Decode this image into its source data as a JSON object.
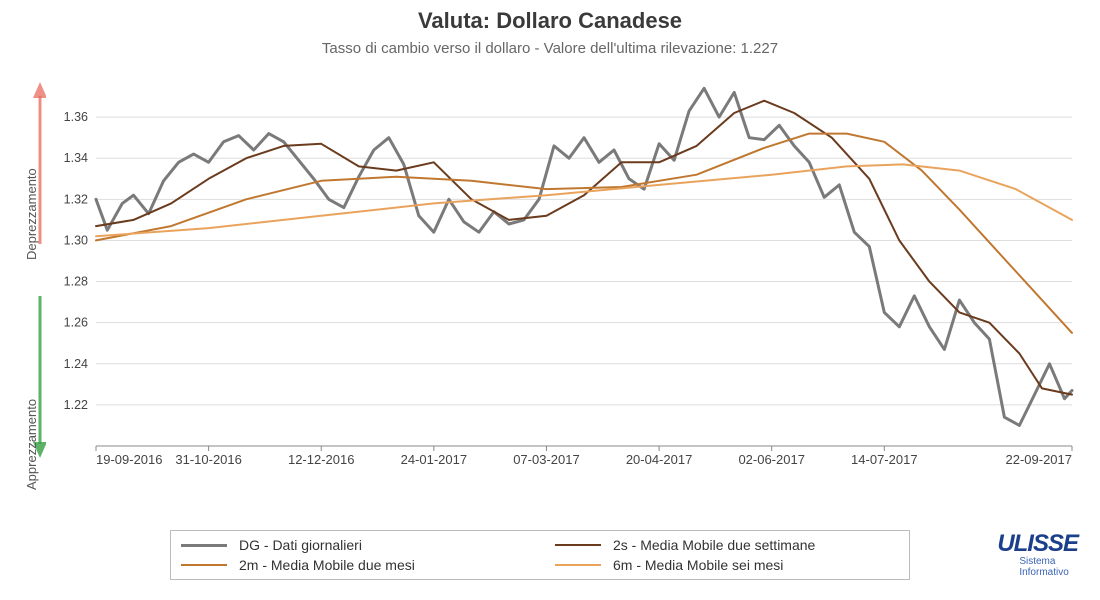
{
  "chart": {
    "type": "line",
    "title": "Valuta: Dollaro Canadese",
    "subtitle": "Tasso di cambio verso il dollaro - Valore dell'ultima rilevazione: 1.227",
    "title_fontsize": 22,
    "subtitle_fontsize": 15,
    "background_color": "#ffffff",
    "grid_color": "#dddddd",
    "axis_color": "#888888",
    "tick_fontsize": 12.5,
    "xtick_fontsize": 13,
    "ylim": [
      1.2,
      1.38
    ],
    "yticks": [
      1.22,
      1.24,
      1.26,
      1.28,
      1.3,
      1.32,
      1.34,
      1.36
    ],
    "xlim": [
      0,
      260
    ],
    "xticks": [
      {
        "pos": 0,
        "label": "19-09-2016"
      },
      {
        "pos": 30,
        "label": "31-10-2016"
      },
      {
        "pos": 60,
        "label": "12-12-2016"
      },
      {
        "pos": 90,
        "label": "24-01-2017"
      },
      {
        "pos": 120,
        "label": "07-03-2017"
      },
      {
        "pos": 150,
        "label": "20-04-2017"
      },
      {
        "pos": 180,
        "label": "02-06-2017"
      },
      {
        "pos": 210,
        "label": "14-07-2017"
      },
      {
        "pos": 260,
        "label": "22-09-2017"
      }
    ],
    "annotations": {
      "up_label": "Deprezzamento",
      "down_label": "Apprezzamento",
      "up_color": "#e86b5c",
      "down_color": "#3fa64b"
    },
    "series": [
      {
        "key": "DG",
        "label": "DG - Dati giornalieri",
        "color": "#7a7a7a",
        "line_width": 3,
        "points": [
          [
            0,
            1.32
          ],
          [
            3,
            1.305
          ],
          [
            7,
            1.318
          ],
          [
            10,
            1.322
          ],
          [
            14,
            1.313
          ],
          [
            18,
            1.329
          ],
          [
            22,
            1.338
          ],
          [
            26,
            1.342
          ],
          [
            30,
            1.338
          ],
          [
            34,
            1.348
          ],
          [
            38,
            1.351
          ],
          [
            42,
            1.344
          ],
          [
            46,
            1.352
          ],
          [
            50,
            1.348
          ],
          [
            54,
            1.339
          ],
          [
            58,
            1.33
          ],
          [
            62,
            1.32
          ],
          [
            66,
            1.316
          ],
          [
            70,
            1.331
          ],
          [
            74,
            1.344
          ],
          [
            78,
            1.35
          ],
          [
            82,
            1.337
          ],
          [
            86,
            1.312
          ],
          [
            90,
            1.304
          ],
          [
            94,
            1.32
          ],
          [
            98,
            1.309
          ],
          [
            102,
            1.304
          ],
          [
            106,
            1.314
          ],
          [
            110,
            1.308
          ],
          [
            114,
            1.31
          ],
          [
            118,
            1.32
          ],
          [
            122,
            1.346
          ],
          [
            126,
            1.34
          ],
          [
            130,
            1.35
          ],
          [
            134,
            1.338
          ],
          [
            138,
            1.344
          ],
          [
            142,
            1.33
          ],
          [
            146,
            1.325
          ],
          [
            150,
            1.347
          ],
          [
            154,
            1.339
          ],
          [
            158,
            1.363
          ],
          [
            162,
            1.374
          ],
          [
            166,
            1.36
          ],
          [
            170,
            1.372
          ],
          [
            174,
            1.35
          ],
          [
            178,
            1.349
          ],
          [
            182,
            1.356
          ],
          [
            186,
            1.346
          ],
          [
            190,
            1.338
          ],
          [
            194,
            1.321
          ],
          [
            198,
            1.327
          ],
          [
            202,
            1.304
          ],
          [
            206,
            1.297
          ],
          [
            210,
            1.265
          ],
          [
            214,
            1.258
          ],
          [
            218,
            1.273
          ],
          [
            222,
            1.258
          ],
          [
            226,
            1.247
          ],
          [
            230,
            1.271
          ],
          [
            234,
            1.26
          ],
          [
            238,
            1.252
          ],
          [
            242,
            1.214
          ],
          [
            246,
            1.21
          ],
          [
            250,
            1.225
          ],
          [
            254,
            1.24
          ],
          [
            258,
            1.223
          ],
          [
            260,
            1.227
          ]
        ]
      },
      {
        "key": "2s",
        "label": "2s - Media Mobile due settimane",
        "color": "#6b3b1e",
        "line_width": 2,
        "points": [
          [
            0,
            1.307
          ],
          [
            10,
            1.31
          ],
          [
            20,
            1.318
          ],
          [
            30,
            1.33
          ],
          [
            40,
            1.34
          ],
          [
            50,
            1.346
          ],
          [
            60,
            1.347
          ],
          [
            70,
            1.336
          ],
          [
            80,
            1.334
          ],
          [
            90,
            1.338
          ],
          [
            100,
            1.32
          ],
          [
            110,
            1.31
          ],
          [
            120,
            1.312
          ],
          [
            130,
            1.322
          ],
          [
            140,
            1.338
          ],
          [
            150,
            1.338
          ],
          [
            160,
            1.346
          ],
          [
            170,
            1.362
          ],
          [
            178,
            1.368
          ],
          [
            186,
            1.362
          ],
          [
            196,
            1.35
          ],
          [
            206,
            1.33
          ],
          [
            214,
            1.3
          ],
          [
            222,
            1.28
          ],
          [
            230,
            1.265
          ],
          [
            238,
            1.26
          ],
          [
            246,
            1.245
          ],
          [
            252,
            1.228
          ],
          [
            260,
            1.225
          ]
        ]
      },
      {
        "key": "2m",
        "label": "2m - Media Mobile due mesi",
        "color": "#c07830",
        "line_width": 2,
        "points": [
          [
            0,
            1.3
          ],
          [
            20,
            1.307
          ],
          [
            40,
            1.32
          ],
          [
            60,
            1.329
          ],
          [
            80,
            1.331
          ],
          [
            100,
            1.329
          ],
          [
            120,
            1.325
          ],
          [
            140,
            1.326
          ],
          [
            160,
            1.332
          ],
          [
            178,
            1.345
          ],
          [
            190,
            1.352
          ],
          [
            200,
            1.352
          ],
          [
            210,
            1.348
          ],
          [
            220,
            1.334
          ],
          [
            230,
            1.315
          ],
          [
            240,
            1.295
          ],
          [
            250,
            1.275
          ],
          [
            260,
            1.255
          ]
        ]
      },
      {
        "key": "6m",
        "label": "6m - Media Mobile sei mesi",
        "color": "#e9a35c",
        "line_width": 2,
        "points": [
          [
            0,
            1.302
          ],
          [
            30,
            1.306
          ],
          [
            60,
            1.312
          ],
          [
            90,
            1.318
          ],
          [
            120,
            1.322
          ],
          [
            150,
            1.327
          ],
          [
            180,
            1.332
          ],
          [
            200,
            1.336
          ],
          [
            215,
            1.337
          ],
          [
            230,
            1.334
          ],
          [
            245,
            1.325
          ],
          [
            260,
            1.31
          ]
        ]
      }
    ]
  },
  "legend": {
    "border_color": "#bbbbbb",
    "fontsize": 14
  },
  "logo": {
    "text": "ULISSE",
    "sub1": "Sistema",
    "sub2": "Informativo",
    "color": "#1b3f8b"
  }
}
